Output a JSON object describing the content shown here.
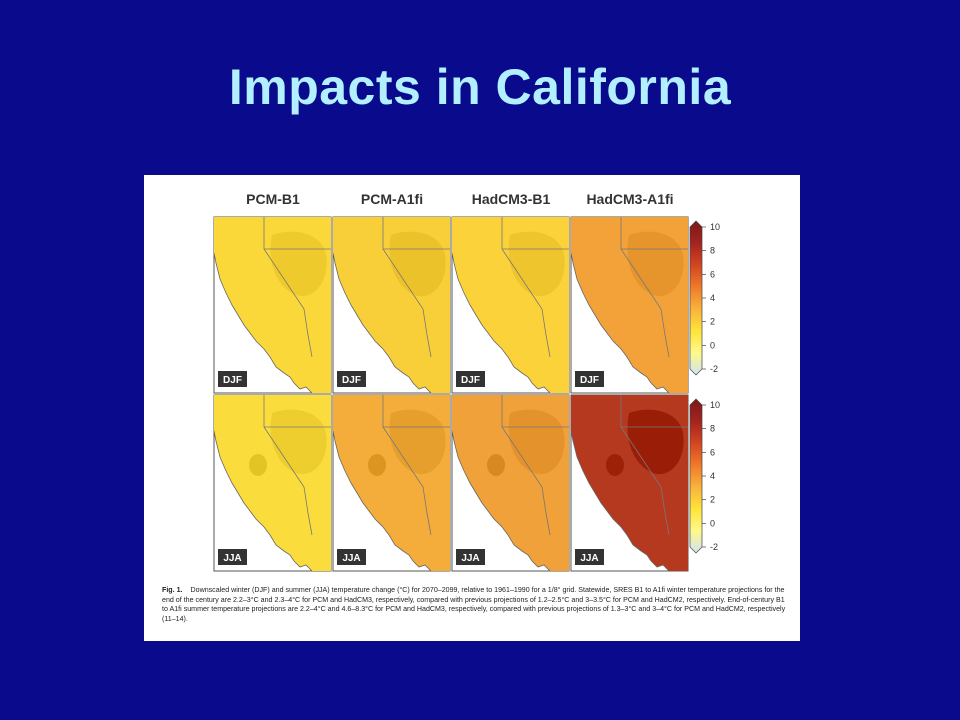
{
  "slide": {
    "title": "Impacts in California",
    "background_color": "#0a0a8c",
    "title_color": "#b3f0ff"
  },
  "figure": {
    "columns": [
      "PCM-B1",
      "PCM-A1fi",
      "HadCM3-B1",
      "HadCM3-A1fi"
    ],
    "rows": [
      "DJF",
      "JJA"
    ],
    "colorbar": {
      "ticks": [
        "10",
        "8",
        "6",
        "4",
        "2",
        "0",
        "-2"
      ],
      "colors_low_to_high": [
        "#cfe3f3",
        "#fff98a",
        "#fde43a",
        "#f9b23b",
        "#ef7a2a",
        "#d34520",
        "#a3231e",
        "#7a1a18"
      ]
    },
    "panel_colors": {
      "pcm_b1_djf": "#fbd83a",
      "pcm_a1fi_djf": "#f9cf39",
      "hadcm3_b1_djf": "#fbd23a",
      "hadcm3_a1fi_djf": "#f3a23a",
      "pcm_b1_jja": "#fbdc3d",
      "pcm_a1fi_jja": "#f4ad3a",
      "hadcm3_b1_jja": "#f1a13a",
      "hadcm3_a1fi_jja": "#b5391f"
    },
    "caption": {
      "label": "Fig. 1.",
      "text": "Downscaled winter (DJF) and summer (JJA) temperature change (°C) for 2070–2099, relative to 1961–1990 for a 1/8° grid. Statewide, SRES B1 to A1fi winter temperature projections for the end of the century are 2.2–3°C and 2.3–4°C for PCM and HadCM3, respectively, compared with previous projections of 1.2–2.5°C and 3–3.5°C for PCM and HadCM2, respectively. End-of-century B1 to A1fi summer temperature projections are 2.2–4°C and 4.6–8.3°C for PCM and HadCM3, respectively, compared with previous projections of 1.3–3°C and 3–4°C for PCM and HadCM2, respectively (11–14)."
    }
  }
}
